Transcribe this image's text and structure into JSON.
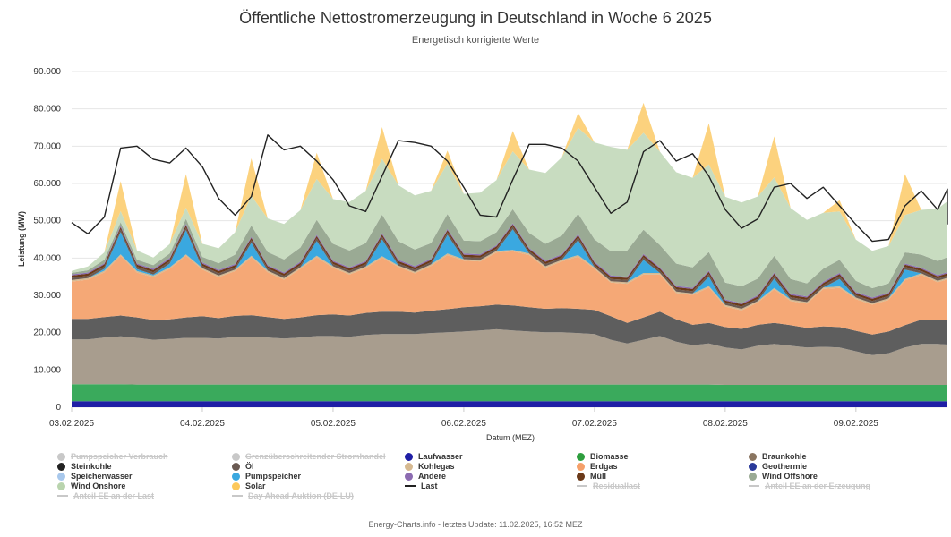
{
  "chart_data": {
    "type": "area",
    "title": "Öffentliche Nettostromerzeugung in Deutschland in Woche 6 2025",
    "subtitle": "Energetisch korrigierte Werte",
    "xlabel": "Datum (MEZ)",
    "ylabel": "Leistung (MW)",
    "ylim": [
      0,
      90000
    ],
    "yticks": [
      "0",
      "10.000",
      "20.000",
      "30.000",
      "40.000",
      "50.000",
      "60.000",
      "70.000",
      "80.000",
      "90.000"
    ],
    "xticks": [
      "03.02.2025",
      "04.02.2025",
      "05.02.2025",
      "06.02.2025",
      "07.02.2025",
      "08.02.2025",
      "09.02.2025"
    ],
    "grid": true,
    "x_days": [
      0,
      0.125,
      0.25,
      0.375,
      0.5,
      0.625,
      0.75,
      0.875,
      1,
      1.125,
      1.25,
      1.375,
      1.5,
      1.625,
      1.75,
      1.875,
      2,
      2.125,
      2.25,
      2.375,
      2.5,
      2.625,
      2.75,
      2.875,
      3,
      3.125,
      3.25,
      3.375,
      3.5,
      3.625,
      3.75,
      3.875,
      4,
      4.125,
      4.25,
      4.375,
      4.5,
      4.625,
      4.75,
      4.875,
      5,
      5.125,
      5.25,
      5.375,
      5.5,
      5.625,
      5.75,
      5.875,
      6,
      6.125,
      6.25,
      6.375,
      6.5,
      6.625,
      6.75,
      6.875,
      6.99
    ],
    "series": [
      {
        "name": "Laufwasser",
        "color": "#1f1ea5",
        "values": [
          1600,
          1600,
          1600,
          1600,
          1600,
          1600,
          1600,
          1600,
          1600,
          1600,
          1600,
          1600,
          1600,
          1600,
          1600,
          1600,
          1600,
          1600,
          1600,
          1600,
          1600,
          1600,
          1600,
          1600,
          1600,
          1600,
          1600,
          1600,
          1600,
          1600,
          1600,
          1600,
          1600,
          1600,
          1600,
          1600,
          1600,
          1600,
          1600,
          1600,
          1600,
          1600,
          1600,
          1600,
          1600,
          1600,
          1600,
          1600,
          1600,
          1600,
          1600,
          1600,
          1600,
          1600,
          1600,
          1600,
          1600
        ]
      },
      {
        "name": "Biomasse",
        "color": "#3aaa5c",
        "values": [
          4600,
          4600,
          4600,
          4600,
          4500,
          4500,
          4500,
          4500,
          4500,
          4500,
          4500,
          4500,
          4500,
          4500,
          4500,
          4500,
          4500,
          4500,
          4500,
          4500,
          4500,
          4500,
          4500,
          4500,
          4500,
          4500,
          4500,
          4500,
          4500,
          4500,
          4500,
          4500,
          4500,
          4500,
          4500,
          4500,
          4500,
          4500,
          4500,
          4500,
          4400,
          4400,
          4400,
          4400,
          4400,
          4400,
          4400,
          4400,
          4400,
          4400,
          4400,
          4400,
          4400,
          4400,
          4400,
          4400,
          4400
        ]
      },
      {
        "name": "Braunkohle",
        "color": "#a89d8e",
        "values": [
          12000,
          12000,
          12500,
          12800,
          12500,
          12000,
          12200,
          12500,
          12500,
          12300,
          12800,
          12800,
          12600,
          12300,
          12600,
          13000,
          13000,
          12800,
          13300,
          13500,
          13500,
          13500,
          13800,
          14000,
          14200,
          14500,
          14800,
          14500,
          14200,
          14000,
          14000,
          13800,
          13500,
          12000,
          11000,
          12000,
          13000,
          11500,
          10500,
          11000,
          10000,
          9500,
          10500,
          11000,
          10500,
          10000,
          10200,
          10000,
          9000,
          8000,
          8500,
          10000,
          11000,
          11000,
          10800,
          10500,
          10500
        ]
      },
      {
        "name": "Steinkohle",
        "color": "#5e5e5e",
        "values": [
          5500,
          5500,
          5500,
          5600,
          5500,
          5300,
          5300,
          5500,
          5800,
          5500,
          5600,
          5800,
          5500,
          5300,
          5400,
          5600,
          5800,
          5700,
          5900,
          6000,
          6000,
          5800,
          6000,
          6200,
          6500,
          6500,
          6600,
          6700,
          6500,
          6300,
          6500,
          6500,
          6500,
          6300,
          5500,
          6000,
          6500,
          6000,
          5500,
          5500,
          5500,
          5500,
          5600,
          5600,
          5500,
          5300,
          5500,
          5500,
          5500,
          5500,
          5800,
          6000,
          6500,
          6500,
          6500,
          6500,
          6500
        ]
      },
      {
        "name": "Erdgas",
        "color": "#f5a876",
        "values": [
          10000,
          10500,
          12000,
          16000,
          12000,
          11500,
          13500,
          16500,
          12500,
          11000,
          12000,
          15500,
          12000,
          10500,
          13000,
          15500,
          12500,
          11000,
          12000,
          14500,
          12000,
          10500,
          12000,
          14500,
          12500,
          12000,
          14000,
          14500,
          14000,
          11000,
          12500,
          14000,
          11000,
          9000,
          10500,
          11500,
          10000,
          7000,
          8000,
          9500,
          5500,
          5000,
          6000,
          9000,
          6500,
          6500,
          10000,
          10500,
          8500,
          8000,
          8500,
          12000,
          12000,
          10000,
          11000,
          10000,
          8500
        ]
      },
      {
        "name": "Kohlegas",
        "color": "#d6b991",
        "values": [
          400,
          400,
          400,
          400,
          400,
          400,
          400,
          400,
          400,
          400,
          400,
          400,
          400,
          400,
          400,
          400,
          400,
          400,
          400,
          400,
          400,
          400,
          400,
          400,
          400,
          400,
          400,
          400,
          400,
          400,
          400,
          400,
          400,
          400,
          400,
          400,
          400,
          400,
          400,
          400,
          400,
          400,
          400,
          400,
          400,
          400,
          400,
          400,
          400,
          400,
          400,
          400,
          400,
          400,
          400,
          400,
          400
        ]
      },
      {
        "name": "Pumpspeicher",
        "color": "#3aa8e0",
        "values": [
          0,
          0,
          500,
          6000,
          500,
          300,
          1000,
          6500,
          0,
          0,
          0,
          3500,
          0,
          0,
          0,
          4000,
          0,
          0,
          0,
          4500,
          0,
          0,
          0,
          5000,
          0,
          0,
          0,
          5500,
          0,
          0,
          0,
          4000,
          0,
          0,
          0,
          3500,
          0,
          0,
          0,
          2500,
          0,
          0,
          0,
          2500,
          0,
          0,
          0,
          2000,
          0,
          0,
          0,
          2500,
          0,
          0,
          0,
          2000,
          0
        ]
      },
      {
        "name": "Öl",
        "color": "#6a5a52",
        "values": [
          600,
          600,
          600,
          700,
          600,
          600,
          600,
          700,
          600,
          600,
          600,
          700,
          600,
          600,
          600,
          700,
          600,
          600,
          600,
          700,
          600,
          600,
          600,
          700,
          600,
          600,
          600,
          700,
          600,
          600,
          600,
          700,
          600,
          600,
          600,
          700,
          600,
          600,
          600,
          700,
          600,
          600,
          600,
          700,
          600,
          600,
          600,
          700,
          600,
          600,
          600,
          700,
          600,
          600,
          600,
          700,
          600
        ]
      },
      {
        "name": "Müll",
        "color": "#6b3a1a",
        "values": [
          600,
          600,
          600,
          600,
          600,
          600,
          600,
          600,
          600,
          600,
          600,
          600,
          600,
          600,
          600,
          600,
          600,
          600,
          600,
          600,
          600,
          600,
          600,
          600,
          600,
          600,
          600,
          600,
          600,
          600,
          600,
          600,
          600,
          600,
          600,
          600,
          600,
          600,
          600,
          600,
          600,
          600,
          600,
          600,
          600,
          600,
          600,
          600,
          600,
          600,
          600,
          600,
          600,
          600,
          600,
          600,
          600
        ]
      },
      {
        "name": "Andere",
        "color": "#8c6bb1",
        "values": [
          300,
          300,
          300,
          300,
          300,
          300,
          300,
          300,
          300,
          300,
          300,
          300,
          300,
          300,
          300,
          300,
          300,
          300,
          300,
          300,
          300,
          300,
          300,
          300,
          300,
          300,
          300,
          300,
          300,
          300,
          300,
          300,
          300,
          300,
          300,
          300,
          300,
          300,
          300,
          300,
          300,
          300,
          300,
          300,
          300,
          300,
          300,
          300,
          300,
          300,
          300,
          300,
          300,
          300,
          300,
          300,
          300
        ]
      },
      {
        "name": "Geothermie",
        "color": "#2a3a9a",
        "values": [
          20,
          20,
          20,
          20,
          20,
          20,
          20,
          20,
          20,
          20,
          20,
          20,
          20,
          20,
          20,
          20,
          20,
          20,
          20,
          20,
          20,
          20,
          20,
          20,
          20,
          20,
          20,
          20,
          20,
          20,
          20,
          20,
          20,
          20,
          20,
          20,
          20,
          20,
          20,
          20,
          20,
          20,
          20,
          20,
          20,
          20,
          20,
          20,
          20,
          20,
          20,
          20,
          20,
          20,
          20,
          20,
          20
        ]
      },
      {
        "name": "Wind Offshore",
        "color": "#9aaa94",
        "values": [
          400,
          600,
          900,
          1000,
          1000,
          1000,
          1200,
          1400,
          1500,
          1800,
          2500,
          3000,
          3500,
          3500,
          3800,
          4000,
          4500,
          4500,
          4800,
          5000,
          5000,
          4500,
          4200,
          4000,
          3500,
          3500,
          3500,
          3800,
          4000,
          4500,
          5000,
          5500,
          6000,
          6500,
          7000,
          6500,
          6000,
          6000,
          5500,
          5000,
          4500,
          4500,
          4500,
          4500,
          4000,
          3500,
          3500,
          3500,
          3000,
          2500,
          2500,
          3000,
          3500,
          3800,
          4000,
          4000,
          4000
        ]
      },
      {
        "name": "Wind Onshore",
        "color": "#c8dcc0",
        "values": [
          500,
          1000,
          2000,
          3000,
          2500,
          2000,
          2500,
          3000,
          3500,
          4000,
          6000,
          8000,
          9000,
          9500,
          10000,
          11000,
          12000,
          13000,
          14000,
          15000,
          15000,
          14500,
          14000,
          13500,
          12500,
          13000,
          14000,
          15500,
          17000,
          19000,
          21000,
          23000,
          26000,
          28000,
          27000,
          26000,
          25000,
          24500,
          24000,
          23500,
          23000,
          22500,
          22000,
          21000,
          19000,
          17000,
          15000,
          13000,
          11000,
          10000,
          10000,
          10000,
          12000,
          14000,
          15000,
          15500,
          15000
        ]
      },
      {
        "name": "Solar",
        "color": "#fcd27e",
        "values": [
          0,
          0,
          0,
          8000,
          0,
          0,
          0,
          9000,
          0,
          0,
          0,
          10000,
          0,
          0,
          0,
          7000,
          0,
          0,
          0,
          8500,
          0,
          0,
          0,
          3500,
          0,
          0,
          0,
          5500,
          0,
          0,
          0,
          4000,
          0,
          0,
          0,
          8000,
          0,
          0,
          0,
          11000,
          0,
          0,
          0,
          11000,
          0,
          0,
          0,
          3000,
          0,
          0,
          0,
          11000,
          0,
          0,
          0,
          2000,
          0
        ]
      }
    ],
    "last": {
      "name": "Last",
      "color": "#222222",
      "values": [
        49500,
        46500,
        51000,
        69500,
        70000,
        66500,
        65500,
        69500,
        64500,
        56000,
        51500,
        56500,
        73000,
        69000,
        70000,
        66000,
        61000,
        54000,
        52500,
        62000,
        71500,
        71000,
        70000,
        66000,
        59000,
        51500,
        51000,
        61000,
        70500,
        70500,
        69500,
        66000,
        59000,
        52000,
        55000,
        68500,
        71500,
        66000,
        68000,
        62000,
        53000,
        48000,
        50500,
        59000,
        60000,
        56000,
        59000,
        54000,
        49000,
        44500,
        45000,
        54000,
        58000,
        53000,
        58500,
        57000,
        49000
      ]
    },
    "legend": [
      {
        "name": "Pumpspeicher Verbrauch",
        "color": "#c8c8c8",
        "shape": "dot",
        "disabled": true
      },
      {
        "name": "Grenzüberschreitender Stromhandel",
        "color": "#c8c8c8",
        "shape": "dot",
        "disabled": true
      },
      {
        "name": "Laufwasser",
        "color": "#1f1ea5",
        "shape": "dot",
        "disabled": false
      },
      {
        "name": "Biomasse",
        "color": "#2e9e3e",
        "shape": "dot",
        "disabled": false
      },
      {
        "name": "Braunkohle",
        "color": "#8a7560",
        "shape": "dot",
        "disabled": false
      },
      {
        "name": "Steinkohle",
        "color": "#222222",
        "shape": "dot",
        "disabled": false
      },
      {
        "name": "Öl",
        "color": "#6a5a52",
        "shape": "dot",
        "disabled": false
      },
      {
        "name": "Kohlegas",
        "color": "#d6b991",
        "shape": "dot",
        "disabled": false
      },
      {
        "name": "Erdgas",
        "color": "#f5a06a",
        "shape": "dot",
        "disabled": false
      },
      {
        "name": "Geothermie",
        "color": "#2a3a9a",
        "shape": "dot",
        "disabled": false
      },
      {
        "name": "Speicherwasser",
        "color": "#a8c8ec",
        "shape": "dot",
        "disabled": false
      },
      {
        "name": "Pumpspeicher",
        "color": "#3aa8e0",
        "shape": "dot",
        "disabled": false
      },
      {
        "name": "Andere",
        "color": "#8c6bb1",
        "shape": "dot",
        "disabled": false
      },
      {
        "name": "Müll",
        "color": "#6b3a1a",
        "shape": "dot",
        "disabled": false
      },
      {
        "name": "Wind Offshore",
        "color": "#9aaa94",
        "shape": "dot",
        "disabled": false
      },
      {
        "name": "Wind Onshore",
        "color": "#b9d4ae",
        "shape": "dot",
        "disabled": false
      },
      {
        "name": "Solar",
        "color": "#fcc85c",
        "shape": "dot",
        "disabled": false
      },
      {
        "name": "Last",
        "color": "#222222",
        "shape": "line",
        "disabled": false
      },
      {
        "name": "Residuallast",
        "color": "#c8c8c8",
        "shape": "line",
        "disabled": true
      },
      {
        "name": "Anteil EE an der Erzeugung",
        "color": "#c8c8c8",
        "shape": "line",
        "disabled": true
      },
      {
        "name": "Anteil EE an der Last",
        "color": "#c8c8c8",
        "shape": "line",
        "disabled": true
      },
      {
        "name": "Day Ahead Auktion (DE-LU)",
        "color": "#c8c8c8",
        "shape": "line",
        "disabled": true
      }
    ]
  },
  "footer": "Energy-Charts.info - letztes Update: 11.02.2025, 16:52 MEZ"
}
